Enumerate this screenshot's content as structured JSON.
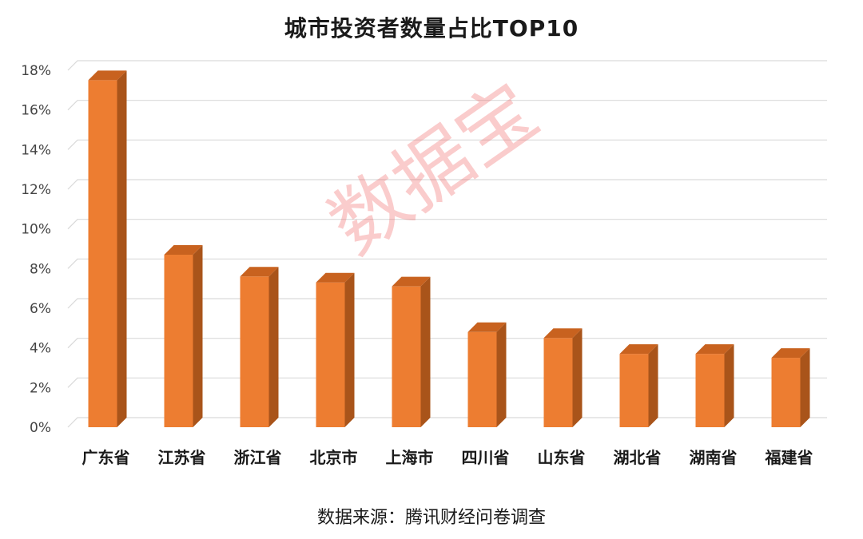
{
  "chart_data": {
    "type": "bar",
    "title": "城市投资者数量占比TOP10",
    "categories": [
      "广东省",
      "江苏省",
      "浙江省",
      "北京市",
      "上海市",
      "四川省",
      "山东省",
      "湖北省",
      "湖南省",
      "福建省"
    ],
    "values": [
      17.5,
      8.7,
      7.6,
      7.3,
      7.1,
      4.8,
      4.5,
      3.7,
      3.7,
      3.5
    ],
    "ylim": [
      0,
      18
    ],
    "yticks": [
      "0%",
      "2%",
      "4%",
      "6%",
      "8%",
      "10%",
      "12%",
      "14%",
      "16%",
      "18%"
    ],
    "grid": true,
    "xlabel": "",
    "ylabel": "",
    "bar_color": "#ED7D31",
    "bar_side_color": "#A9541A",
    "bar_top_color": "#C8621F"
  },
  "source": "数据来源：腾讯财经问卷调查",
  "watermark": "数据宝"
}
